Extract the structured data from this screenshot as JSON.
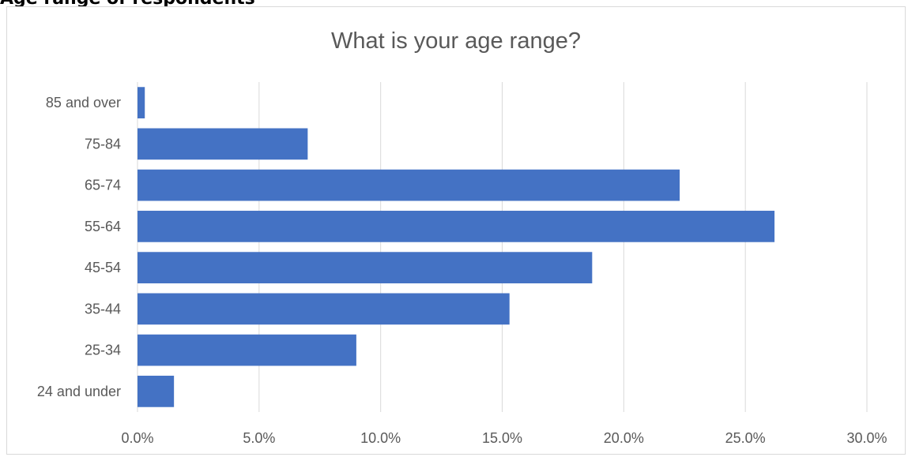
{
  "page_heading": "Age range of respondents",
  "chart_data": {
    "type": "bar",
    "orientation": "horizontal",
    "title": "What is your age range?",
    "categories": [
      "85 and over",
      "75-84",
      "65-74",
      "55-64",
      "45-54",
      "35-44",
      "25-34",
      "24 and under"
    ],
    "values": [
      0.3,
      7.0,
      22.3,
      26.2,
      18.7,
      15.3,
      9.0,
      1.5
    ],
    "xlim": [
      0,
      30
    ],
    "x_ticks": [
      0,
      5,
      10,
      15,
      20,
      25,
      30
    ],
    "x_tick_labels": [
      "0.0%",
      "5.0%",
      "10.0%",
      "15.0%",
      "20.0%",
      "25.0%",
      "30.0%"
    ],
    "grid": "vertical",
    "legend": "none",
    "bar_color": "#4472C4"
  }
}
